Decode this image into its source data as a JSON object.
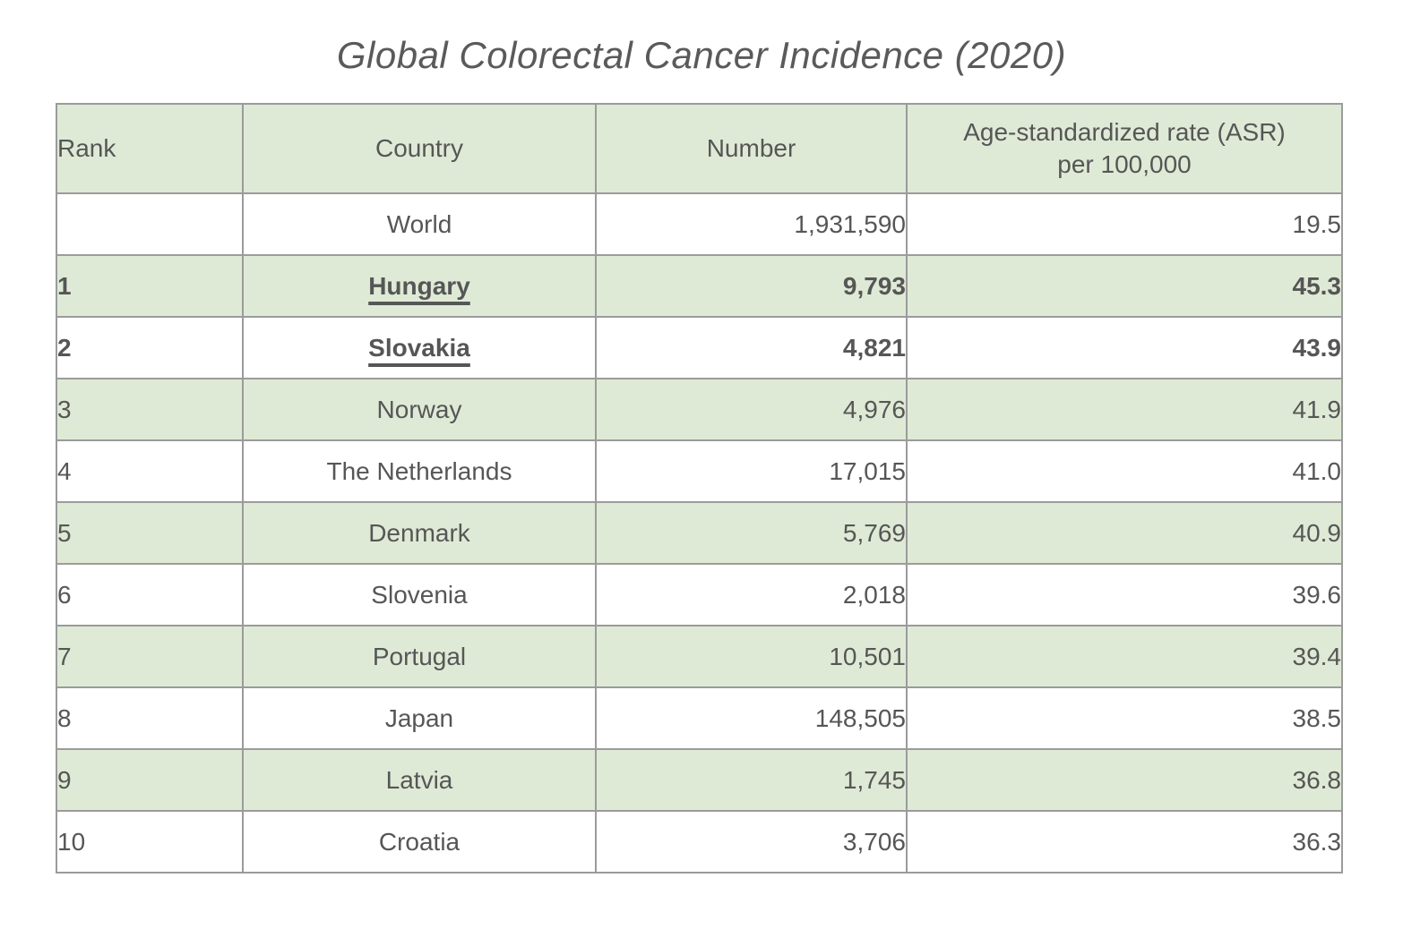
{
  "colors": {
    "row_shade_green": "#dfead6",
    "table_border": "#9b9b9b",
    "text": "#565656",
    "background": "#ffffff"
  },
  "chart_data": {
    "type": "table",
    "title": "Global Colorectal Cancer Incidence (2020)",
    "columns": {
      "rank": "Rank",
      "country": "Country",
      "number": "Number",
      "asr_line1": "Age-standardized rate (ASR)",
      "asr_line2": "per 100,000"
    },
    "rows": [
      {
        "rank": "",
        "country": "World",
        "number": "1,931,590",
        "asr": "19.5",
        "emphasis": false
      },
      {
        "rank": "1",
        "country": "Hungary",
        "number": "9,793",
        "asr": "45.3",
        "emphasis": true
      },
      {
        "rank": "2",
        "country": "Slovakia",
        "number": "4,821",
        "asr": "43.9",
        "emphasis": true
      },
      {
        "rank": "3",
        "country": "Norway",
        "number": "4,976",
        "asr": "41.9",
        "emphasis": false
      },
      {
        "rank": "4",
        "country": "The Netherlands",
        "number": "17,015",
        "asr": "41.0",
        "emphasis": false
      },
      {
        "rank": "5",
        "country": "Denmark",
        "number": "5,769",
        "asr": "40.9",
        "emphasis": false
      },
      {
        "rank": "6",
        "country": "Slovenia",
        "number": "2,018",
        "asr": "39.6",
        "emphasis": false
      },
      {
        "rank": "7",
        "country": "Portugal",
        "number": "10,501",
        "asr": "39.4",
        "emphasis": false
      },
      {
        "rank": "8",
        "country": "Japan",
        "number": "148,505",
        "asr": "38.5",
        "emphasis": false
      },
      {
        "rank": "9",
        "country": "Latvia",
        "number": "1,745",
        "asr": "36.8",
        "emphasis": false
      },
      {
        "rank": "10",
        "country": "Croatia",
        "number": "3,706",
        "asr": "36.3",
        "emphasis": false
      }
    ]
  }
}
